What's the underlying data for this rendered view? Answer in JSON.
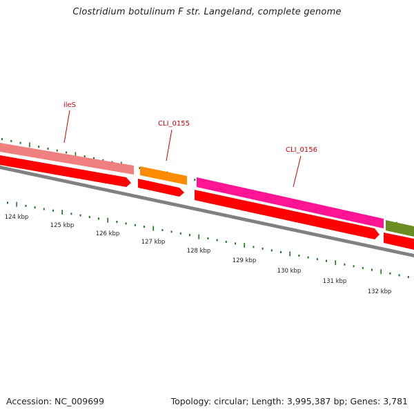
{
  "title": "Clostridium botulinum F str. Langeland, complete genome",
  "footer": {
    "accession": "Accession: NC_009699",
    "summary": "Topology: circular; Length: 3,995,387 bp; Genes: 3,781"
  },
  "colors": {
    "backbone": "#808080",
    "cds": "#ff0000",
    "tick": "#1a7a1a",
    "label": "#cc0000",
    "ileS": "#f08080",
    "CLI_0155": "#ff8c00",
    "CLI_0156": "#ff1493",
    "next_gene": "#6b8e23"
  },
  "gene_labels": [
    {
      "name": "ileS"
    },
    {
      "name": "CLI_0155"
    },
    {
      "name": "CLI_0156"
    }
  ],
  "ruler_labels": [
    "124 kbp",
    "125 kbp",
    "126 kbp",
    "127 kbp",
    "128 kbp",
    "129 kbp",
    "130 kbp",
    "131 kbp",
    "132 kbp"
  ]
}
